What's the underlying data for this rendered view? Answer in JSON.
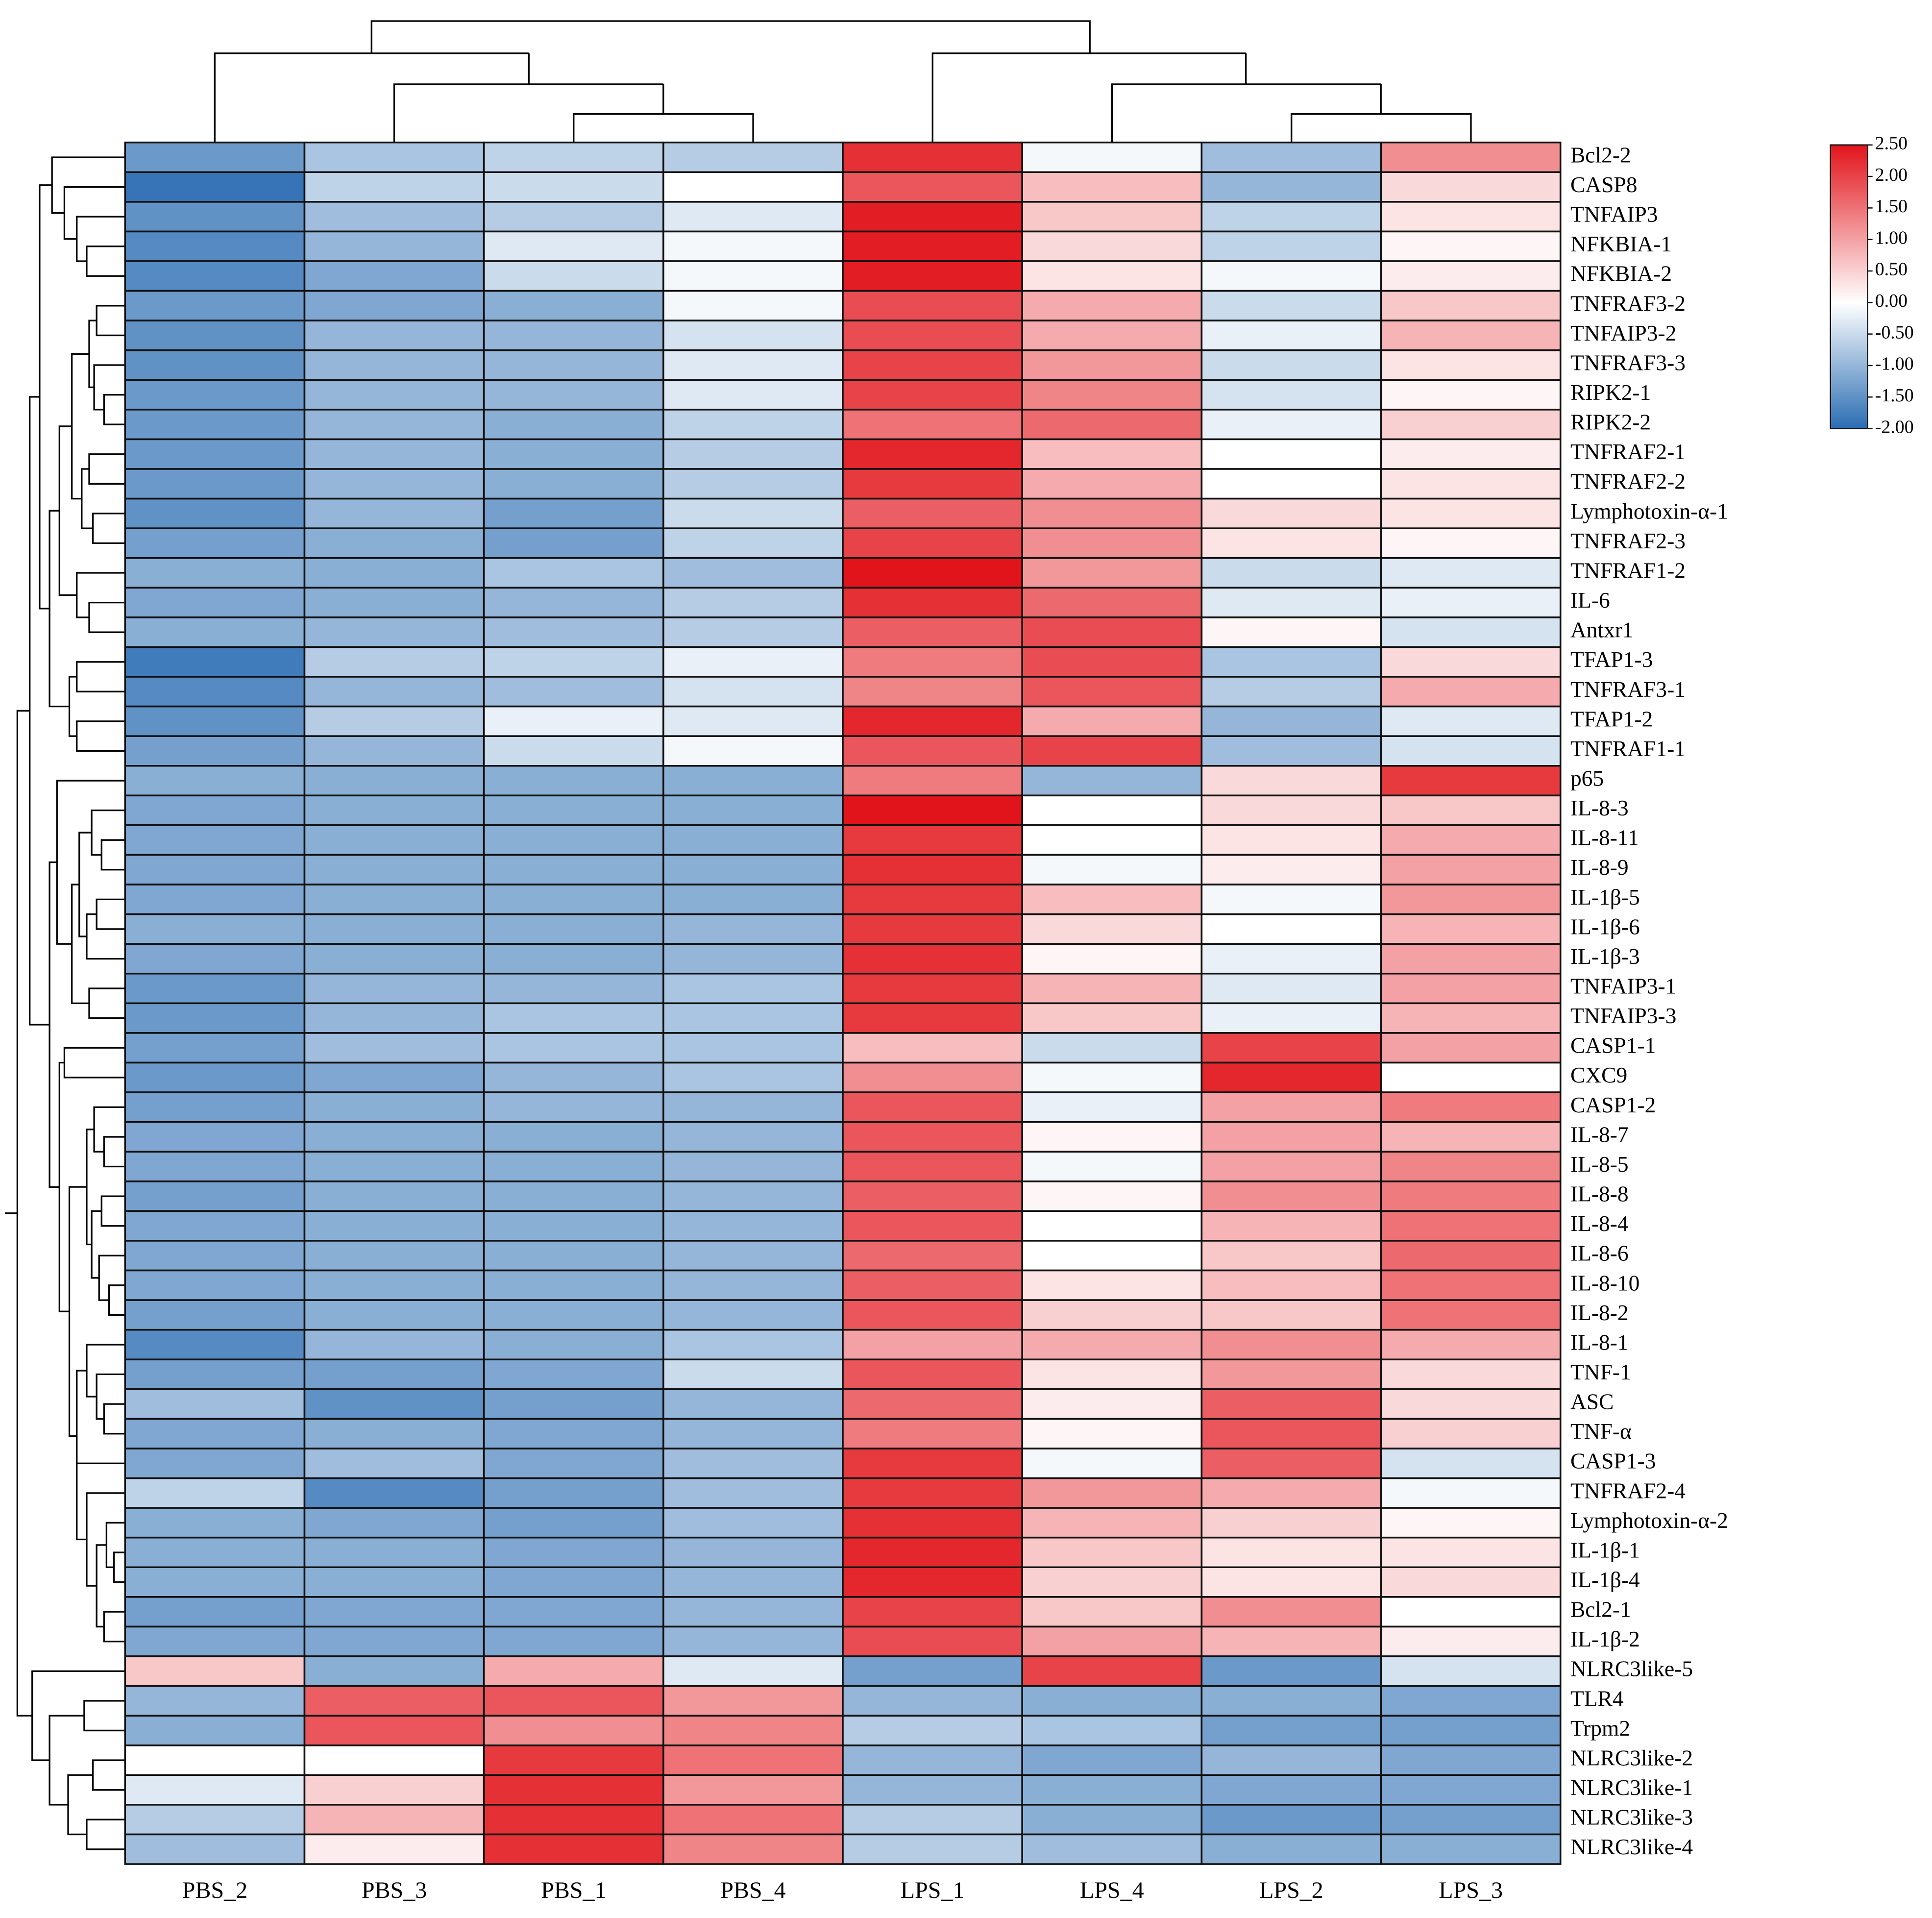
{
  "chart_data": {
    "type": "heatmap",
    "x": [
      "PBS_2",
      "PBS_3",
      "PBS_1",
      "PBS_4",
      "LPS_1",
      "LPS_4",
      "LPS_2",
      "LPS_3"
    ],
    "y": [
      "Bcl2-2",
      "CASP8",
      "TNFAIP3",
      "NFKBIA-1",
      "NFKBIA-2",
      "TNFRAF3-2",
      "TNFAIP3-2",
      "TNFRAF3-3",
      "RIPK2-1",
      "RIPK2-2",
      "TNFRAF2-1",
      "TNFRAF2-2",
      "Lymphotoxin-α-1",
      "TNFRAF2-3",
      "TNFRAF1-2",
      "IL-6",
      "Antxr1",
      "TFAP1-3",
      "TNFRAF3-1",
      "TFAP1-2",
      "TNFRAF1-1",
      "p65",
      "IL-8-3",
      "IL-8-11",
      "IL-8-9",
      "IL-1β-5",
      "IL-1β-6",
      "IL-1β-3",
      "TNFAIP3-1",
      "TNFAIP3-3",
      "CASP1-1",
      "CXC9",
      "CASP1-2",
      "IL-8-7",
      "IL-8-5",
      "IL-8-8",
      "IL-8-4",
      "IL-8-6",
      "IL-8-10",
      "IL-8-2",
      "IL-8-1",
      "TNF-1",
      "ASC",
      "TNF-α",
      "CASP1-3",
      "TNFRAF2-4",
      "Lymphotoxin-α-2",
      "IL-1β-1",
      "IL-1β-4",
      "Bcl2-1",
      "IL-1β-2",
      "NLRC3like-5",
      "TLR4",
      "Trpm2",
      "NLRC3like-2",
      "NLRC3like-1",
      "NLRC3like-3",
      "NLRC3like-4"
    ],
    "values": [
      [
        -1.4,
        -0.8,
        -0.6,
        -0.7,
        2.2,
        -0.1,
        -0.9,
        1.2
      ],
      [
        -1.9,
        -0.6,
        -0.5,
        0.0,
        1.8,
        0.7,
        -1.0,
        0.4
      ],
      [
        -1.5,
        -0.9,
        -0.7,
        -0.3,
        2.4,
        0.6,
        -0.6,
        0.3
      ],
      [
        -1.6,
        -1.0,
        -0.3,
        -0.1,
        2.4,
        0.4,
        -0.6,
        0.1
      ],
      [
        -1.6,
        -1.2,
        -0.5,
        -0.1,
        2.4,
        0.3,
        -0.1,
        0.2
      ],
      [
        -1.4,
        -1.2,
        -1.1,
        -0.1,
        1.9,
        0.9,
        -0.5,
        0.6
      ],
      [
        -1.5,
        -1.0,
        -1.0,
        -0.4,
        1.9,
        0.9,
        -0.2,
        0.8
      ],
      [
        -1.5,
        -1.0,
        -1.0,
        -0.3,
        2.0,
        1.1,
        -0.5,
        0.3
      ],
      [
        -1.4,
        -1.0,
        -1.0,
        -0.3,
        2.0,
        1.3,
        -0.4,
        0.1
      ],
      [
        -1.4,
        -1.0,
        -1.1,
        -0.6,
        1.5,
        1.6,
        -0.2,
        0.5
      ],
      [
        -1.4,
        -1.0,
        -1.1,
        -0.7,
        2.3,
        0.7,
        0.0,
        0.2
      ],
      [
        -1.4,
        -1.0,
        -1.1,
        -0.7,
        2.1,
        0.9,
        0.0,
        0.3
      ],
      [
        -1.5,
        -1.0,
        -1.3,
        -0.5,
        1.7,
        1.2,
        0.4,
        0.3
      ],
      [
        -1.3,
        -1.1,
        -1.3,
        -0.6,
        2.0,
        1.2,
        0.3,
        0.1
      ],
      [
        -1.1,
        -1.1,
        -0.8,
        -0.9,
        2.5,
        1.1,
        -0.5,
        -0.3
      ],
      [
        -1.2,
        -1.1,
        -1.0,
        -0.7,
        2.2,
        1.6,
        -0.3,
        -0.2
      ],
      [
        -1.1,
        -1.0,
        -0.9,
        -0.7,
        1.7,
        1.9,
        0.1,
        -0.4
      ],
      [
        -1.8,
        -0.7,
        -0.6,
        -0.2,
        1.4,
        1.9,
        -0.8,
        0.4
      ],
      [
        -1.6,
        -1.0,
        -0.9,
        -0.4,
        1.3,
        1.8,
        -0.7,
        0.9
      ],
      [
        -1.5,
        -0.7,
        -0.2,
        -0.3,
        2.3,
        0.9,
        -1.0,
        -0.3
      ],
      [
        -1.3,
        -1.0,
        -0.5,
        -0.1,
        1.8,
        2.0,
        -0.9,
        -0.4
      ],
      [
        -1.1,
        -1.1,
        -1.1,
        -1.1,
        1.4,
        -1.0,
        0.4,
        2.1
      ],
      [
        -1.2,
        -1.1,
        -1.1,
        -1.1,
        2.5,
        0.0,
        0.4,
        0.6
      ],
      [
        -1.2,
        -1.1,
        -1.1,
        -1.1,
        2.1,
        0.0,
        0.3,
        0.9
      ],
      [
        -1.2,
        -1.1,
        -1.1,
        -1.1,
        2.2,
        -0.1,
        0.2,
        1.0
      ],
      [
        -1.2,
        -1.1,
        -1.1,
        -1.1,
        2.1,
        0.7,
        -0.1,
        1.1
      ],
      [
        -1.1,
        -1.1,
        -1.1,
        -1.0,
        2.1,
        0.4,
        0.0,
        0.8
      ],
      [
        -1.2,
        -1.1,
        -1.1,
        -1.0,
        2.2,
        0.1,
        -0.2,
        1.0
      ],
      [
        -1.4,
        -1.0,
        -1.0,
        -0.8,
        2.1,
        0.8,
        -0.3,
        1.0
      ],
      [
        -1.4,
        -1.0,
        -0.8,
        -0.8,
        2.1,
        0.6,
        -0.2,
        0.8
      ],
      [
        -1.3,
        -0.9,
        -0.8,
        -0.8,
        0.7,
        -0.5,
        2.0,
        1.0
      ],
      [
        -1.4,
        -1.2,
        -1.0,
        -0.8,
        1.2,
        -0.1,
        2.3,
        0.0
      ],
      [
        -1.3,
        -1.1,
        -1.0,
        -1.0,
        1.8,
        -0.2,
        1.0,
        1.4
      ],
      [
        -1.2,
        -1.1,
        -1.1,
        -1.0,
        1.8,
        0.1,
        1.0,
        0.8
      ],
      [
        -1.2,
        -1.1,
        -1.1,
        -1.0,
        1.8,
        -0.1,
        1.0,
        1.3
      ],
      [
        -1.3,
        -1.1,
        -1.1,
        -1.0,
        1.7,
        0.1,
        1.2,
        1.4
      ],
      [
        -1.2,
        -1.1,
        -1.1,
        -1.0,
        1.8,
        0.0,
        0.8,
        1.5
      ],
      [
        -1.2,
        -1.1,
        -1.1,
        -1.0,
        1.6,
        0.0,
        0.6,
        1.6
      ],
      [
        -1.2,
        -1.1,
        -1.1,
        -1.0,
        1.7,
        0.3,
        0.7,
        1.5
      ],
      [
        -1.3,
        -1.1,
        -1.1,
        -1.0,
        1.8,
        0.5,
        0.6,
        1.5
      ],
      [
        -1.6,
        -1.0,
        -1.1,
        -0.8,
        1.0,
        0.9,
        1.2,
        0.9
      ],
      [
        -1.3,
        -1.3,
        -1.2,
        -0.5,
        1.8,
        0.3,
        1.1,
        0.4
      ],
      [
        -0.9,
        -1.5,
        -1.3,
        -1.0,
        1.6,
        0.2,
        1.7,
        0.4
      ],
      [
        -1.2,
        -1.1,
        -1.2,
        -1.0,
        1.4,
        0.1,
        1.8,
        0.5
      ],
      [
        -1.2,
        -0.9,
        -1.2,
        -0.9,
        2.1,
        -0.1,
        1.7,
        -0.4
      ],
      [
        -0.6,
        -1.6,
        -1.3,
        -0.9,
        2.1,
        1.1,
        0.9,
        -0.1
      ],
      [
        -1.1,
        -1.2,
        -1.3,
        -0.9,
        2.2,
        0.8,
        0.5,
        0.1
      ],
      [
        -1.1,
        -1.1,
        -1.2,
        -1.0,
        2.3,
        0.6,
        0.3,
        0.3
      ],
      [
        -1.1,
        -1.1,
        -1.2,
        -1.0,
        2.3,
        0.5,
        0.3,
        0.4
      ],
      [
        -1.3,
        -1.2,
        -1.2,
        -1.0,
        2.0,
        0.6,
        1.2,
        0.0
      ],
      [
        -1.2,
        -1.2,
        -1.2,
        -1.0,
        1.9,
        1.0,
        0.8,
        0.2
      ],
      [
        0.6,
        -1.1,
        0.9,
        -0.3,
        -1.3,
        2.0,
        -1.4,
        -0.4
      ],
      [
        -1.0,
        1.7,
        1.8,
        1.1,
        -1.0,
        -1.1,
        -1.1,
        -1.2
      ],
      [
        -1.1,
        1.8,
        1.2,
        1.3,
        -0.7,
        -0.8,
        -1.3,
        -1.3
      ],
      [
        0.0,
        0.0,
        2.1,
        1.5,
        -1.0,
        -1.2,
        -1.0,
        -1.2
      ],
      [
        -0.3,
        0.5,
        2.2,
        1.1,
        -1.0,
        -1.1,
        -1.2,
        -1.2
      ],
      [
        -0.7,
        0.8,
        2.2,
        1.5,
        -0.7,
        -1.1,
        -1.4,
        -1.3
      ],
      [
        -0.9,
        0.2,
        2.2,
        1.3,
        -0.7,
        -0.9,
        -1.1,
        -1.1
      ]
    ],
    "zlim": [
      -2,
      2.5
    ],
    "colorscale": [
      [
        -2,
        "#2b6db3"
      ],
      [
        0,
        "#ffffff"
      ],
      [
        2.5,
        "#e2141b"
      ]
    ],
    "zticks": [
      {
        "value": 2.5,
        "label": "2.50"
      },
      {
        "value": 2,
        "label": "2.00"
      },
      {
        "value": 1.5,
        "label": "1.50"
      },
      {
        "value": 1,
        "label": "1.00"
      },
      {
        "value": 0.5,
        "label": "0.50"
      },
      {
        "value": 0,
        "label": "0.00"
      },
      {
        "value": -0.5,
        "label": "-0.50"
      },
      {
        "value": -1,
        "label": "-1.00"
      },
      {
        "value": -1.5,
        "label": "-1.50"
      },
      {
        "value": -2,
        "label": "-2.00"
      }
    ]
  }
}
